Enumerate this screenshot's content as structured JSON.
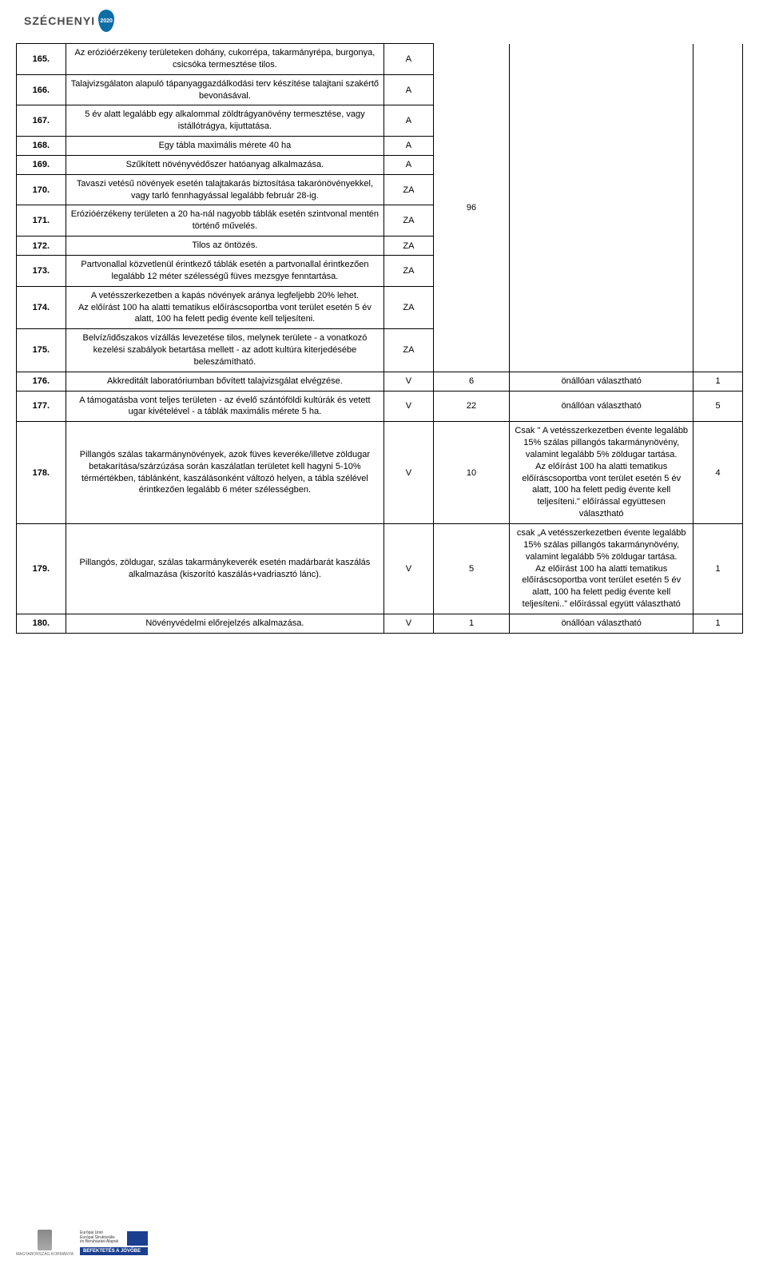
{
  "header": {
    "brand": "SZÉCHENYI",
    "year": "2020"
  },
  "table": {
    "merged_col4_value": "96",
    "rows": [
      {
        "num": "165.",
        "desc": "Az erózióérzékeny területeken dohány, cukorrépa, takarmányrépa, burgonya, csicsóka termesztése tilos.",
        "c3": "A"
      },
      {
        "num": "166.",
        "desc": "Talajvizsgálaton alapuló tápanyaggazdálkodási terv készítése talajtani szakértő bevonásával.",
        "c3": "A"
      },
      {
        "num": "167.",
        "desc": "5 év alatt legalább egy alkalommal zöldtrágyanövény termesztése, vagy istállótrágya, kijuttatása.",
        "c3": "A"
      },
      {
        "num": "168.",
        "desc": "Egy tábla maximális mérete 40 ha",
        "c3": "A"
      },
      {
        "num": "169.",
        "desc": "Szűkített növényvédőszer hatóanyag alkalmazása.",
        "c3": "A"
      },
      {
        "num": "170.",
        "desc": "Tavaszi vetésű növények esetén talajtakarás biztosítása takarónövényekkel, vagy tarló fennhagyással legalább február 28-ig.",
        "c3": "ZA"
      },
      {
        "num": "171.",
        "desc": "Erózióérzékeny területen a 20 ha-nál nagyobb táblák esetén szintvonal mentén történő művelés.",
        "c3": "ZA"
      },
      {
        "num": "172.",
        "desc": "Tilos az öntözés.",
        "c3": "ZA"
      },
      {
        "num": "173.",
        "desc": "Partvonallal közvetlenül érintkező táblák esetén a partvonallal érintkezően legalább 12 méter szélességű füves mezsgye fenntartása.",
        "c3": "ZA"
      },
      {
        "num": "174.",
        "desc": "A vetésszerkezetben a kapás növények aránya legfeljebb 20% lehet.\nAz előírást 100 ha alatti tematikus előíráscsoportba vont terület esetén 5 év alatt, 100 ha felett pedig évente kell teljesíteni.",
        "c3": "ZA"
      },
      {
        "num": "175.",
        "desc": "Belvíz/időszakos vízállás levezetése tilos, melynek területe - a vonatkozó kezelési szabályok betartása mellett - az adott kultúra kiterjedésébe beleszámítható.",
        "c3": "ZA"
      },
      {
        "num": "176.",
        "desc": "Akkreditált laboratóriumban bővített talajvizsgálat elvégzése.",
        "c3": "V",
        "c4": "6",
        "c5": "önállóan választható",
        "c6": "1"
      },
      {
        "num": "177.",
        "desc": "A támogatásba vont teljes területen - az évelő szántóföldi kultúrák és vetett ugar kivételével - a táblák maximális mérete 5 ha.",
        "c3": "V",
        "c4": "22",
        "c5": "önállóan választható",
        "c6": "5"
      },
      {
        "num": "178.",
        "desc": "Pillangós szálas takarmánynövények, azok füves keveréke/illetve zöldugar betakarítása/szárzúzása során kaszálatlan területet kell hagyni 5-10% térmértékben, táblánként, kaszálásonként változó helyen, a tábla szélével érintkezően legalább 6 méter szélességben.",
        "c3": "V",
        "c4": "10",
        "c5": "Csak \" A vetésszerkezetben évente legalább 15% szálas pillangós takarmánynövény, valamint legalább 5% zöldugar tartása.\nAz előírást 100 ha alatti tematikus előíráscsoportba vont terület esetén 5 év alatt, 100 ha felett pedig évente kell teljesíteni.\" előírással együttesen választható",
        "c6": "4"
      },
      {
        "num": "179.",
        "desc": "Pillangós, zöldugar, szálas takarmánykeverék esetén madárbarát kaszálás alkalmazása (kiszorító kaszálás+vadriasztó lánc).",
        "c3": "V",
        "c4": "5",
        "c5": "csak „A vetésszerkezetben évente legalább 15% szálas pillangós takarmánynövény, valamint legalább 5% zöldugar tartása.\nAz előírást 100 ha alatti tematikus előíráscsoportba vont terület esetén 5 év alatt, 100 ha felett pedig évente kell teljesíteni..” előírással együtt választható",
        "c6": "1"
      },
      {
        "num": "180.",
        "desc": "Növényvédelmi előrejelzés alkalmazása.",
        "c3": "V",
        "c4": "1",
        "c5": "önállóan választható",
        "c6": "1"
      }
    ]
  },
  "footer": {
    "korm": "MAGYARORSZÁG KORMÁNYA",
    "eu1": "Európai Unió",
    "eu2": "Európai Strukturális",
    "eu3": "és Beruházási Alapok",
    "befek": "BEFEKTETÉS A JÖVŐBE"
  }
}
